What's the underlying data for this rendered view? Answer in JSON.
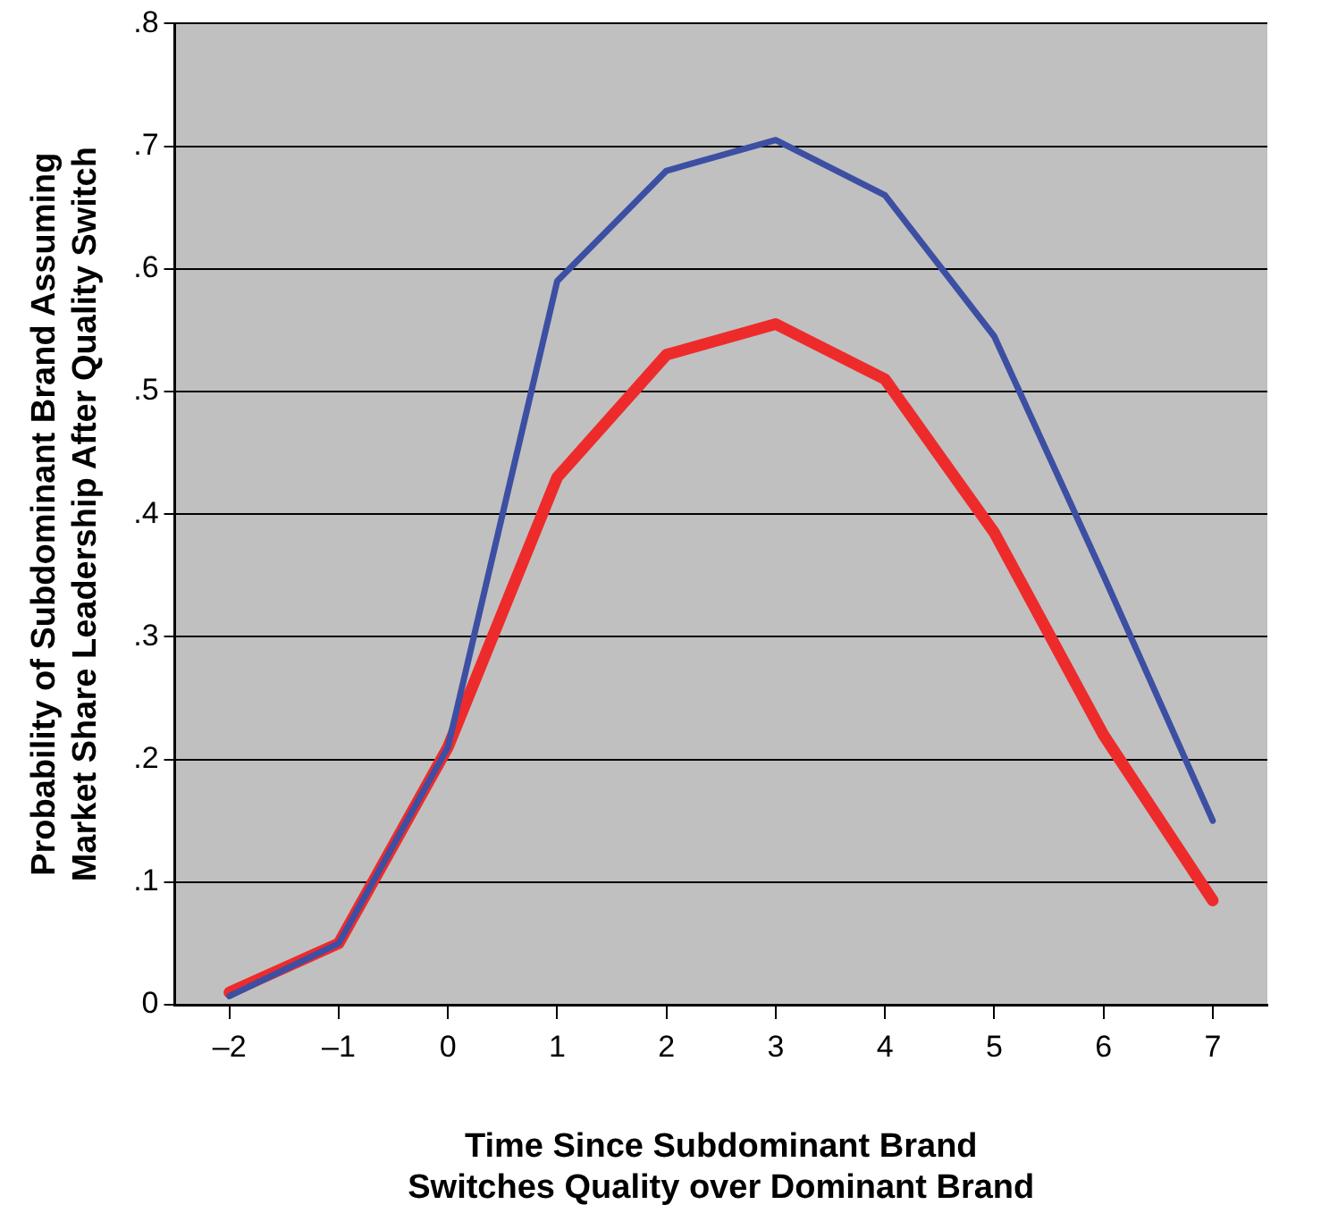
{
  "chart_data": {
    "type": "line",
    "xlabel": "Time Since Subdominant Brand\nSwitches Quality over Dominant Brand",
    "ylabel": "Probability of Subdominant Brand Assuming\nMarket Share Leadership After Quality Switch",
    "categories": [
      "–2",
      "–1",
      "0",
      "1",
      "2",
      "3",
      "4",
      "5",
      "6",
      "7"
    ],
    "series": [
      {
        "color": "#3d4fa3",
        "values": [
          0.007,
          0.05,
          0.21,
          0.59,
          0.68,
          0.705,
          0.66,
          0.545,
          0.35,
          0.15
        ]
      },
      {
        "color": "#ee2b2b",
        "values": [
          0.01,
          0.05,
          0.21,
          0.43,
          0.53,
          0.555,
          0.51,
          0.385,
          0.22,
          0.085
        ]
      }
    ],
    "ylim": [
      0,
      0.8
    ],
    "yticks": [
      0,
      {
        "value": 0.1,
        "label": ".1"
      },
      {
        "value": 0.2,
        "label": ".2"
      },
      {
        "value": 0.3,
        "label": ".3"
      },
      {
        "value": 0.4,
        "label": ".4"
      },
      {
        "value": 0.5,
        "label": ".5"
      },
      {
        "value": 0.6,
        "label": ".6"
      },
      {
        "value": 0.7,
        "label": ".7"
      },
      {
        "value": 0.8,
        "label": ".8"
      }
    ],
    "grid": "y",
    "legend": false,
    "marker": "none",
    "line_style": "solid"
  }
}
